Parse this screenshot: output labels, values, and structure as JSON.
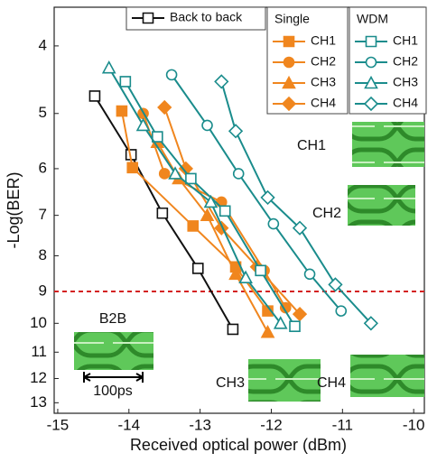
{
  "chart_data": {
    "type": "line",
    "x_label": "Received optical power (dBm)",
    "y_label": "-Log(BER)",
    "xlim": [
      -15.05,
      -9.85
    ],
    "xticks": [
      -15,
      -14,
      -13,
      -12,
      -11,
      -10
    ],
    "ylim": [
      3.52,
      13.46
    ],
    "yticks": [
      4,
      5,
      6,
      7,
      8,
      9,
      10,
      11,
      12,
      13
    ],
    "yscale": "log",
    "y_inverted": true,
    "threshold": {
      "value": 9,
      "color": "#d42020"
    },
    "legend_titles": [
      "Single",
      "WDM"
    ],
    "series": [
      {
        "name": "Back to back",
        "color": "#111111",
        "marker": "square",
        "filled": false,
        "group": null,
        "x": [
          -14.48,
          -13.97,
          -13.53,
          -13.03,
          -12.54
        ],
        "values": [
          4.72,
          5.73,
          6.95,
          8.34,
          10.2
        ]
      },
      {
        "name": "CH1",
        "color": "#f0861e",
        "marker": "square",
        "filled": true,
        "group": 0,
        "x": [
          -14.1,
          -13.95,
          -13.1,
          -12.5,
          -12.05
        ],
        "values": [
          4.96,
          5.98,
          7.25,
          8.3,
          9.6
        ]
      },
      {
        "name": "CH2",
        "color": "#f0861e",
        "marker": "circle",
        "filled": true,
        "group": 0,
        "x": [
          -13.8,
          -13.5,
          -12.7,
          -12.1,
          -11.8
        ],
        "values": [
          5.0,
          6.1,
          6.7,
          8.4,
          9.5
        ]
      },
      {
        "name": "CH3",
        "color": "#f0861e",
        "marker": "triangle",
        "filled": true,
        "group": 0,
        "x": [
          -13.6,
          -13.3,
          -12.9,
          -12.5,
          -12.05
        ],
        "values": [
          5.5,
          6.2,
          7.0,
          8.5,
          10.3
        ]
      },
      {
        "name": "CH4",
        "color": "#f0861e",
        "marker": "diamond",
        "filled": true,
        "group": 0,
        "x": [
          -13.5,
          -13.2,
          -12.7,
          -12.2,
          -11.6
        ],
        "values": [
          4.9,
          6.0,
          7.3,
          8.3,
          9.7
        ]
      },
      {
        "name": "CH1",
        "color": "#1a8c8c",
        "marker": "square",
        "filled": false,
        "group": 1,
        "x": [
          -14.05,
          -13.6,
          -13.13,
          -12.65,
          -12.15,
          -11.67
        ],
        "values": [
          4.5,
          5.4,
          6.2,
          6.9,
          8.4,
          10.1
        ]
      },
      {
        "name": "CH2",
        "color": "#1a8c8c",
        "marker": "circle",
        "filled": false,
        "group": 1,
        "x": [
          -13.4,
          -12.9,
          -12.46,
          -11.97,
          -11.46,
          -11.02
        ],
        "values": [
          4.4,
          5.2,
          6.1,
          7.2,
          8.5,
          9.6
        ]
      },
      {
        "name": "CH3",
        "color": "#1a8c8c",
        "marker": "triangle",
        "filled": false,
        "group": 1,
        "x": [
          -14.28,
          -13.8,
          -13.35,
          -12.85,
          -12.36,
          -11.87
        ],
        "values": [
          4.3,
          5.2,
          6.1,
          6.7,
          8.6,
          10.0
        ]
      },
      {
        "name": "CH4",
        "color": "#1a8c8c",
        "marker": "diamond",
        "filled": false,
        "group": 1,
        "x": [
          -12.7,
          -12.5,
          -12.05,
          -11.6,
          -11.1,
          -10.6
        ],
        "values": [
          4.5,
          5.3,
          6.6,
          7.3,
          8.8,
          10.0
        ]
      }
    ],
    "annotations": [
      "CH1",
      "CH2",
      "B2B",
      "100ps",
      "CH3",
      "CH4"
    ]
  }
}
